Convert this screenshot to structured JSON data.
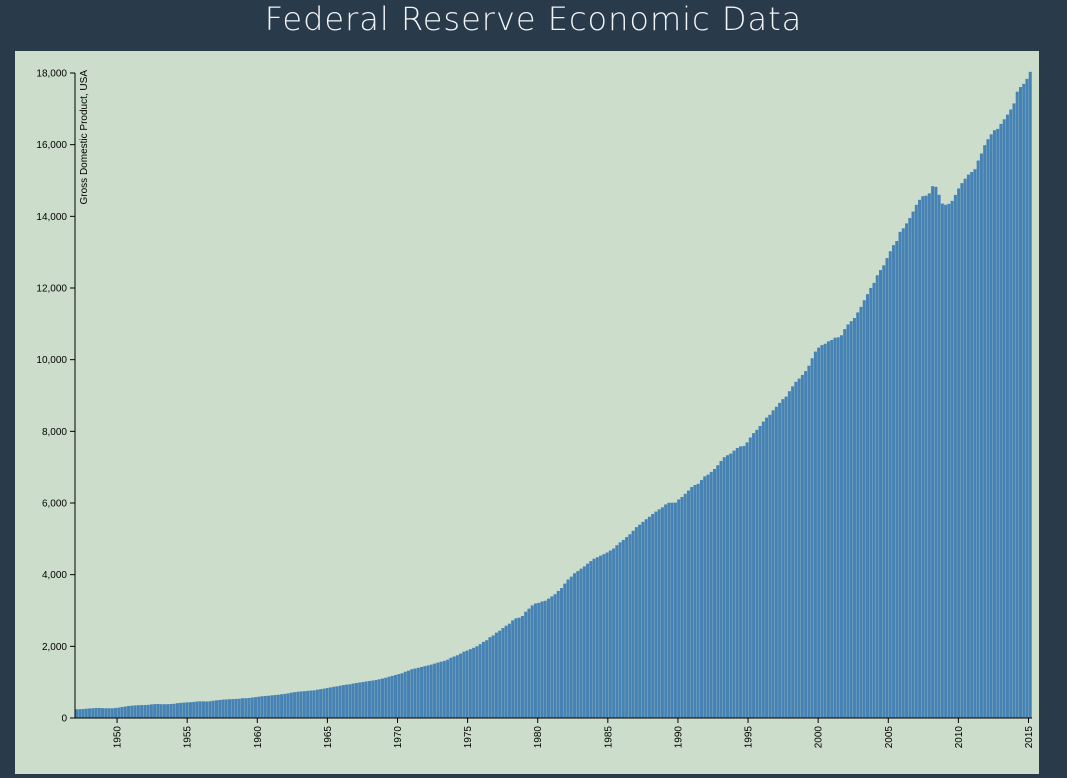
{
  "page": {
    "title": "Federal Reserve Economic Data"
  },
  "chart_data": {
    "type": "bar",
    "ylabel": "Gross Domestic Product, USA",
    "ylim": [
      0,
      18000
    ],
    "x_start_year": 1947,
    "x_end_year": 2015.25,
    "frequency": "quarterly",
    "bar_color": "#4682b4",
    "background_color": "#ccdecb",
    "y_ticks": [
      "0",
      "2,000",
      "4,000",
      "6,000",
      "8,000",
      "10,000",
      "12,000",
      "14,000",
      "16,000",
      "18,000"
    ],
    "x_ticks": [
      "1950",
      "1955",
      "1960",
      "1965",
      "1970",
      "1975",
      "1980",
      "1985",
      "1990",
      "1995",
      "2000",
      "2005",
      "2010",
      "2015"
    ],
    "series": [
      {
        "values": [
          243,
          246,
          250,
          260,
          266,
          272,
          279,
          280,
          275,
          271,
          273,
          271,
          281,
          290,
          308,
          320,
          336,
          345,
          351,
          357,
          360,
          361,
          367,
          380,
          387,
          391,
          386,
          385,
          386,
          391,
          398,
          413,
          422,
          430,
          437,
          441,
          448,
          461,
          464,
          465,
          462,
          468,
          482,
          494,
          503,
          513,
          518,
          523,
          528,
          533,
          538,
          551,
          554,
          558,
          572,
          581,
          595,
          607,
          615,
          621,
          633,
          641,
          649,
          664,
          673,
          687,
          708,
          722,
          732,
          742,
          750,
          757,
          767,
          772,
          790,
          805,
          819,
          836,
          853,
          872,
          883,
          902,
          919,
          933,
          942,
          963,
          977,
          990,
          1005,
          1020,
          1034,
          1046,
          1060,
          1082,
          1102,
          1124,
          1151,
          1176,
          1200,
          1226,
          1249,
          1292,
          1322,
          1362,
          1382,
          1402,
          1425,
          1447,
          1468,
          1490,
          1518,
          1546,
          1572,
          1595,
          1628,
          1682,
          1717,
          1752,
          1798,
          1852,
          1883,
          1922,
          1958,
          2002,
          2061,
          2125,
          2171,
          2253,
          2305,
          2382,
          2436,
          2510,
          2576,
          2632,
          2725,
          2782,
          2800,
          2847,
          2967,
          3052,
          3143,
          3196,
          3213,
          3252,
          3273,
          3330,
          3392,
          3454,
          3545,
          3626,
          3749,
          3864,
          3945,
          4039,
          4100,
          4167,
          4232,
          4306,
          4379,
          4446,
          4487,
          4531,
          4572,
          4618,
          4674,
          4730,
          4822,
          4901,
          4970,
          5050,
          5128,
          5225,
          5326,
          5395,
          5472,
          5548,
          5617,
          5695,
          5760,
          5824,
          5880,
          5960,
          6006,
          6009,
          6010,
          6100,
          6169,
          6257,
          6348,
          6446,
          6503,
          6535,
          6643,
          6743,
          6792,
          6868,
          6950,
          7053,
          7173,
          7276,
          7334,
          7380,
          7462,
          7535,
          7580,
          7593,
          7691,
          7828,
          7950,
          8041,
          8148,
          8273,
          8384,
          8462,
          8586,
          8687,
          8795,
          8898,
          8969,
          9119,
          9256,
          9382,
          9473,
          9575,
          9681,
          9831,
          10040,
          10226,
          10338,
          10407,
          10444,
          10511,
          10549,
          10612,
          10624,
          10681,
          10852,
          10983,
          11074,
          11162,
          11318,
          11474,
          11659,
          11828,
          12002,
          12144,
          12356,
          12501,
          12634,
          12834,
          13027,
          13196,
          13311,
          13566,
          13666,
          13803,
          13951,
          14132,
          14320,
          14461,
          14563,
          14578,
          14642,
          14842,
          14824,
          14601,
          14356,
          14323,
          14349,
          14432,
          14597,
          14778,
          14926,
          15050,
          15164,
          15236,
          15315,
          15557,
          15754,
          15986,
          16152,
          16289,
          16402,
          16441,
          16581,
          16708,
          16840,
          16981,
          17151,
          17479,
          17608,
          17697,
          17836,
          18033
        ]
      }
    ]
  }
}
